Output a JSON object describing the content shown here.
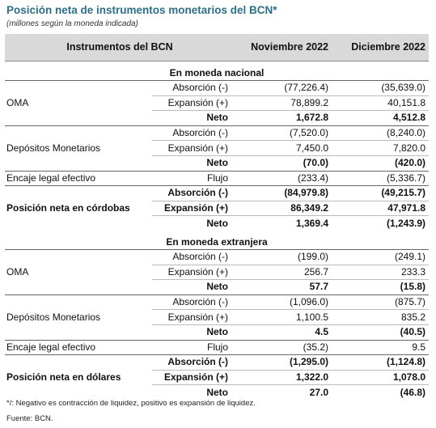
{
  "title": "Posición neta de instrumentos monetarios del BCN*",
  "subtitle": "(millones según la moneda indicada)",
  "header": [
    "Instrumentos del BCN",
    "Noviembre 2022",
    "Diciembre 2022"
  ],
  "sections": [
    {
      "title": "En moneda nacional",
      "groups": [
        {
          "label": "OMA",
          "rows": [
            [
              "Absorción (-)",
              "(77,226.4)",
              "(35,639.0)"
            ],
            [
              "Expansión (+)",
              "78,899.2",
              "40,151.8"
            ],
            [
              "Neto",
              "1,672.8",
              "4,512.8"
            ]
          ]
        },
        {
          "label": "Depósitos Monetarios",
          "rows": [
            [
              "Absorción (-)",
              "(7,520.0)",
              "(8,240.0)"
            ],
            [
              "Expansión (+)",
              "7,450.0",
              "7,820.0"
            ],
            [
              "Neto",
              "(70.0)",
              "(420.0)"
            ]
          ]
        },
        {
          "label": "Encaje legal efectivo",
          "rows": [
            [
              "Flujo",
              "(233.4)",
              "(5,336.7)"
            ]
          ]
        },
        {
          "label": "Posición neta en córdobas",
          "rows": [
            [
              "Absorción (-)",
              "(84,979.8)",
              "(49,215.7)"
            ],
            [
              "Expansión (+)",
              "86,349.2",
              "47,971.8"
            ],
            [
              "Neto",
              "1,369.4",
              "(1,243.9)"
            ]
          ]
        }
      ]
    },
    {
      "title": "En moneda extranjera",
      "groups": [
        {
          "label": "OMA",
          "rows": [
            [
              "Absorción (-)",
              "(199.0)",
              "(249.1)"
            ],
            [
              "Expansión (+)",
              "256.7",
              "233.3"
            ],
            [
              "Neto",
              "57.7",
              "(15.8)"
            ]
          ]
        },
        {
          "label": "Depósitos Monetarios",
          "rows": [
            [
              "Absorción (-)",
              "(1,096.0)",
              "(875.7)"
            ],
            [
              "Expansión (+)",
              "1,100.5",
              "835.2"
            ],
            [
              "Neto",
              "4.5",
              "(40.5)"
            ]
          ]
        },
        {
          "label": "Encaje legal efectivo",
          "rows": [
            [
              "Flujo",
              "(35.2)",
              "9.5"
            ]
          ]
        },
        {
          "label": "Posición neta en dólares",
          "rows": [
            [
              "Absorción (-)",
              "(1,295.0)",
              "(1,124.8)"
            ],
            [
              "Expansión (+)",
              "1,322.0",
              "1,078.0"
            ],
            [
              "Neto",
              "27.0",
              "(46.8)"
            ]
          ]
        }
      ]
    }
  ],
  "footnotes": [
    "*/: Negativo es contracción de liquidez, positivo es expansión de liquidez.",
    "Fuente: BCN."
  ]
}
